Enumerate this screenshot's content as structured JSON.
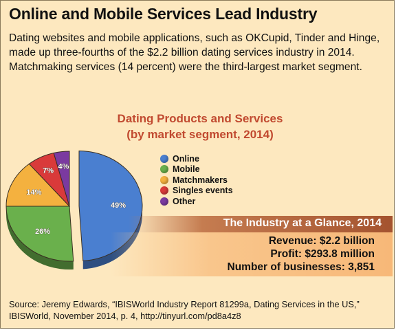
{
  "headline": "Online and Mobile Services Lead Industry",
  "intro": "Dating websites and mobile applications, such as OKCupid, Tinder and Hinge, made up three-fourths of the $2.2 billion dating services industry in 2014. Matchmaking services (14 percent) were the third-largest market segment.",
  "chart_data": {
    "type": "pie",
    "title": "Dating Products and Services",
    "subtitle": "(by market segment, 2014)",
    "slices": [
      {
        "label": "Online",
        "value": 49,
        "display": "49%",
        "color": "#4a7fd0"
      },
      {
        "label": "Mobile",
        "value": 26,
        "display": "26%",
        "color": "#6ab04c"
      },
      {
        "label": "Matchmakers",
        "value": 14,
        "display": "14%",
        "color": "#f4b13f"
      },
      {
        "label": "Singles events",
        "value": 7,
        "display": "7%",
        "color": "#d93a3a"
      },
      {
        "label": "Other",
        "value": 4,
        "display": "4%",
        "color": "#7b3aa0"
      }
    ],
    "legend_position": "right"
  },
  "glance": {
    "title": "The Industry at a Glance, 2014",
    "revenue": "Revenue: $2.2 billion",
    "profit": "Profit: $293.8 million",
    "businesses": "Number of businesses: 3,851"
  },
  "source": "Source: Jeremy Edwards, “IBISWorld Industry Report 81299a, Dating Services in the US,” IBISWorld, November 2014, p. 4, http://tinyurl.com/pd8a4z8"
}
